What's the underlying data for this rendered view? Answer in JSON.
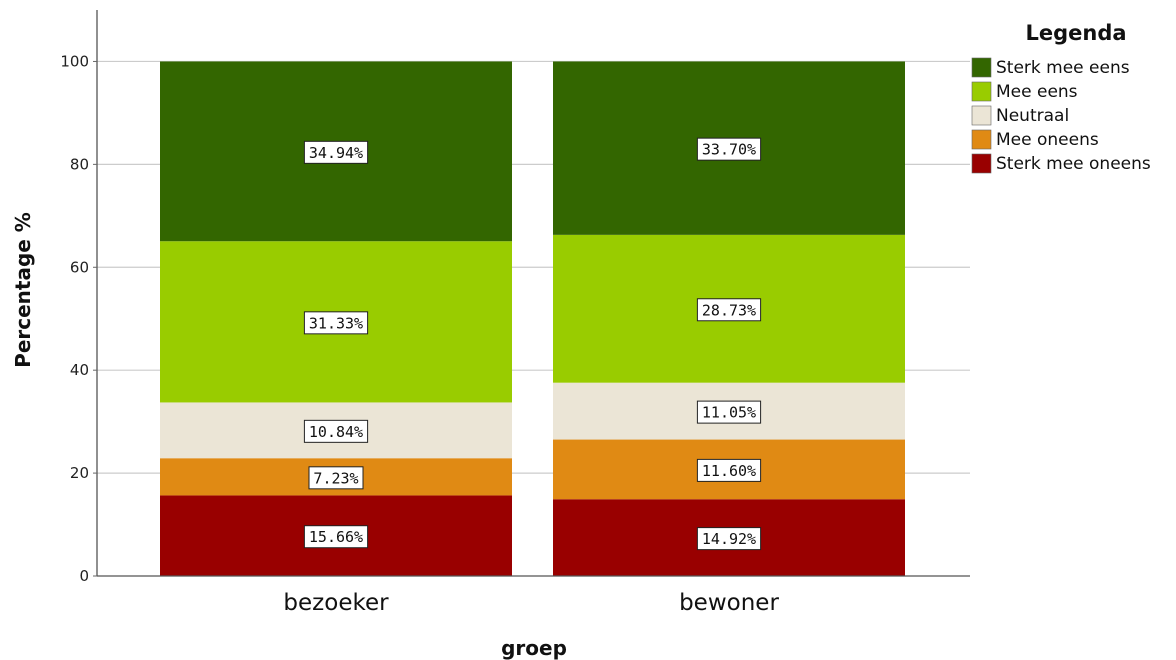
{
  "chart_data": {
    "type": "bar",
    "stacked": true,
    "categories": [
      "bezoeker",
      "bewoner"
    ],
    "xlabel": "groep",
    "ylabel": "Percentage %",
    "ylim": [
      0,
      110
    ],
    "yticks": [
      0,
      20,
      40,
      60,
      80,
      100
    ],
    "grid": true,
    "legend_title": "Legenda",
    "legend_position": "top-right",
    "series": [
      {
        "name": "Sterk mee oneens",
        "color": "#990000",
        "values": [
          15.66,
          14.92
        ],
        "labels": [
          "15.66%",
          "14.92%"
        ]
      },
      {
        "name": "Mee oneens",
        "color": "#e08a14",
        "values": [
          7.23,
          11.6
        ],
        "labels": [
          "7.23%",
          "11.60%"
        ]
      },
      {
        "name": "Neutraal",
        "color": "#ebe5d6",
        "values": [
          10.84,
          11.05
        ],
        "labels": [
          "10.84%",
          "11.05%"
        ]
      },
      {
        "name": "Mee eens",
        "color": "#99cc00",
        "values": [
          31.33,
          28.73
        ],
        "labels": [
          "31.33%",
          "28.73%"
        ]
      },
      {
        "name": "Sterk mee eens",
        "color": "#336600",
        "values": [
          34.94,
          33.7
        ],
        "labels": [
          "34.94%",
          "33.70%"
        ]
      }
    ]
  }
}
